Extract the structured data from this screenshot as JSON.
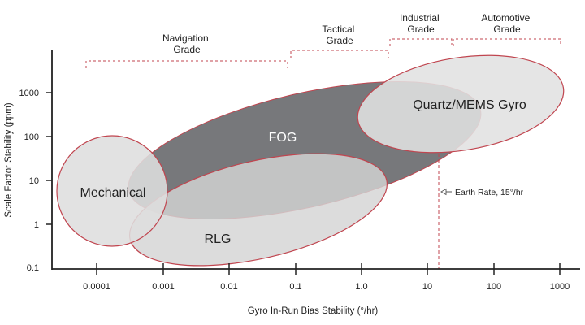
{
  "axes": {
    "x_title": "Gyro In-Run Bias Stability (°/hr)",
    "y_title": "Scale Factor Stability (ppm)",
    "x_ticks": [
      "0.0001",
      "0.001",
      "0.01",
      "0.1",
      "1.0",
      "10",
      "100",
      "1000"
    ],
    "y_ticks": [
      "1000",
      "100",
      "10",
      "1",
      "0.1"
    ]
  },
  "grades": {
    "navigation": [
      "Navigation",
      "Grade"
    ],
    "tactical": [
      "Tactical",
      "Grade"
    ],
    "industrial": [
      "Industrial",
      "Grade"
    ],
    "automotive": [
      "Automotive",
      "Grade"
    ]
  },
  "regions": {
    "fog": "FOG",
    "rlg": "RLG",
    "mechanical": "Mechanical",
    "quartz": "Quartz/MEMS Gyro"
  },
  "annotation": {
    "earth_rate": "Earth Rate, 15°/hr"
  },
  "colors": {
    "fog_fill": "#6b6d70",
    "light_fill": "#d9d9d9",
    "outline_red": "#c0454f",
    "axis": "#222222"
  }
}
